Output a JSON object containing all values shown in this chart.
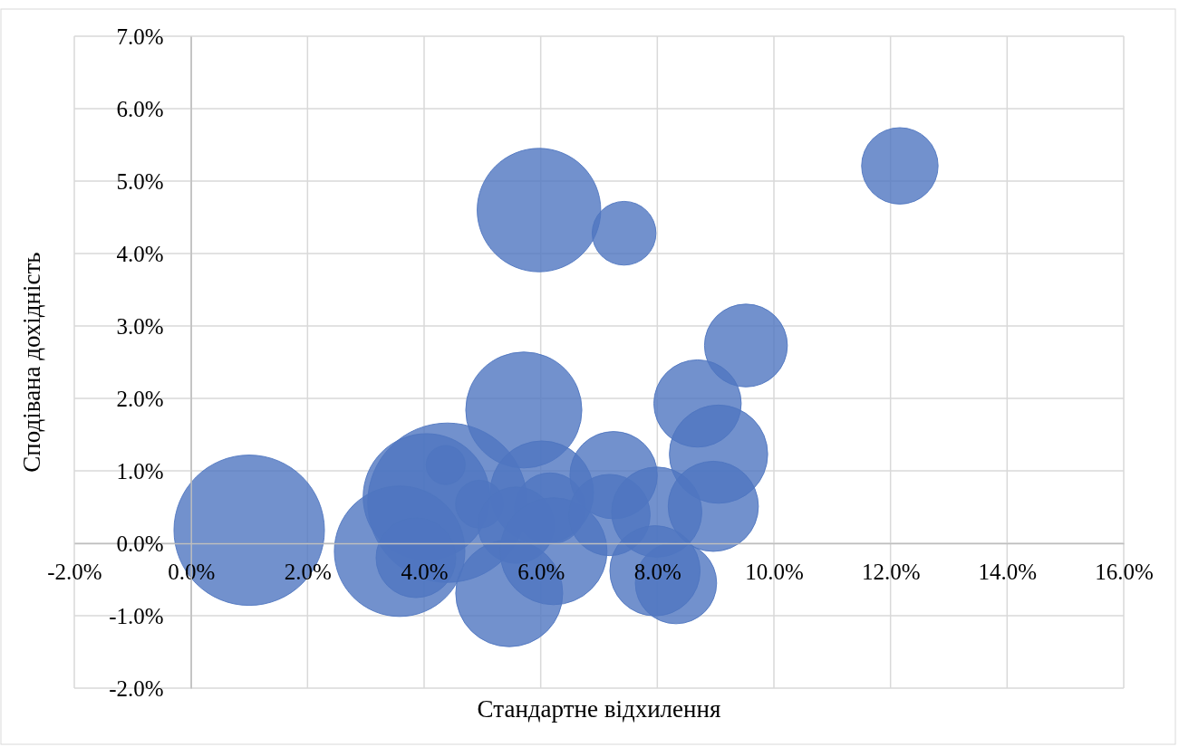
{
  "chart_data": {
    "type": "bubble",
    "xlabel": "Стандартне відхилення",
    "ylabel": "Сподівана дохідність",
    "xlim": [
      -2,
      16
    ],
    "xticks": [
      {
        "value": -2,
        "label": "-2.0%"
      },
      {
        "value": 0,
        "label": "0.0%"
      },
      {
        "value": 2,
        "label": "2.0%"
      },
      {
        "value": 4,
        "label": "4.0%"
      },
      {
        "value": 6,
        "label": "6.0%"
      },
      {
        "value": 8,
        "label": "8.0%"
      },
      {
        "value": 10,
        "label": "10.0%"
      },
      {
        "value": 12,
        "label": "12.0%"
      },
      {
        "value": 14,
        "label": "14.0%"
      },
      {
        "value": 16,
        "label": "16.0%"
      }
    ],
    "ylim": [
      -2,
      7
    ],
    "yticks": [
      {
        "value": -2,
        "label": "-2.0%"
      },
      {
        "value": -1,
        "label": "-1.0%"
      },
      {
        "value": 0,
        "label": "0.0%"
      },
      {
        "value": 1,
        "label": "1.0%"
      },
      {
        "value": 2,
        "label": "2.0%"
      },
      {
        "value": 3,
        "label": "3.0%"
      },
      {
        "value": 4,
        "label": "4.0%"
      },
      {
        "value": 5,
        "label": "5.0%"
      },
      {
        "value": 6,
        "label": "6.0%"
      },
      {
        "value": 7,
        "label": "7.0%"
      }
    ],
    "grid": true,
    "series": [
      {
        "color": "#4f76c0",
        "x": [
          1.0,
          4.4,
          4.04,
          3.58,
          5.97,
          7.43,
          12.16,
          9.52,
          8.69,
          5.71,
          9.05,
          6.02,
          4.37,
          4.95,
          6.16,
          5.58,
          3.86,
          5.46,
          6.22,
          7.25,
          7.18,
          7.99,
          8.96,
          8.32,
          7.96
        ],
        "values": [
          0.18,
          0.56,
          0.64,
          -0.11,
          4.6,
          4.28,
          5.21,
          2.73,
          1.93,
          1.84,
          1.23,
          0.7,
          1.08,
          0.54,
          0.48,
          0.25,
          -0.2,
          -0.69,
          -0.11,
          0.94,
          0.39,
          0.43,
          0.51,
          -0.55,
          -0.38
        ],
        "sizes": [
          0.89,
          1,
          0.63,
          0.67,
          0.6,
          0.16,
          0.23,
          0.27,
          0.3,
          0.53,
          0.38,
          0.42,
          0.06,
          0.09,
          0.2,
          0.23,
          0.25,
          0.45,
          0.45,
          0.3,
          0.26,
          0.32,
          0.32,
          0.26,
          0.32
        ]
      }
    ]
  }
}
